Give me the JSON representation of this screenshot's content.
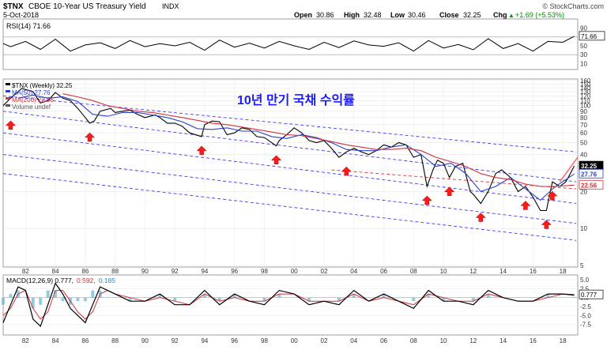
{
  "header": {
    "symbol": "$TNX",
    "name": "CBOE 10-Year US Treasury Yield",
    "exchange": "INDX",
    "date": "5-Oct-2018",
    "copyright": "© StockCharts.com",
    "open_label": "Open",
    "open": "30.86",
    "high_label": "High",
    "high": "32.48",
    "low_label": "Low",
    "low": "30.46",
    "close_label": "Close",
    "close": "32.25",
    "chg_label": "Chg",
    "chg": "+1.69 (+5.53%)",
    "chg_arrow": "▲"
  },
  "chart_data": [
    {
      "type": "line",
      "panel": "rsi",
      "legend": "RSI(14) 71.66",
      "ylim": [
        0,
        100
      ],
      "yticks": [
        10,
        30,
        50,
        70,
        90
      ],
      "reference_lines": [
        30,
        70
      ],
      "last_value_label": "71.66",
      "series": [
        {
          "name": "RSI(14)",
          "x": [
            1980.5,
            1981,
            1982,
            1983,
            1984,
            1985,
            1986,
            1987,
            1988,
            1989,
            1990,
            1991,
            1992,
            1993,
            1994,
            1995,
            1996,
            1997,
            1998,
            1999,
            2000,
            2001,
            2002,
            2003,
            2004,
            2005,
            2006,
            2007,
            2008,
            2009,
            2010,
            2011,
            2012,
            2013,
            2014,
            2015,
            2016,
            2017,
            2018,
            2018.76
          ],
          "y": [
            55,
            48,
            60,
            42,
            65,
            38,
            52,
            57,
            44,
            62,
            48,
            55,
            50,
            58,
            40,
            63,
            47,
            56,
            45,
            60,
            50,
            42,
            58,
            46,
            61,
            52,
            49,
            57,
            38,
            62,
            45,
            53,
            41,
            66,
            44,
            55,
            38,
            60,
            58,
            71.66
          ]
        }
      ]
    },
    {
      "type": "line",
      "panel": "price",
      "title": "10년 만기 국채 수익률",
      "legend": [
        "$TNX (Weekly) 32.25",
        "MA(50) 27.76",
        "MA(200) 22.56",
        "Volume undef"
      ],
      "ylim": [
        5,
        160
      ],
      "log_scale": true,
      "yticks": [
        5,
        10,
        20,
        30,
        40,
        50,
        60,
        70,
        80,
        90,
        100,
        110,
        120,
        130,
        140,
        150,
        160
      ],
      "xticks": [
        "82",
        "84",
        "86",
        "88",
        "90",
        "92",
        "94",
        "96",
        "98",
        "00",
        "02",
        "04",
        "06",
        "08",
        "10",
        "12",
        "14",
        "16",
        "18"
      ],
      "xtick_years": [
        1982,
        1984,
        1986,
        1988,
        1990,
        1992,
        1994,
        1996,
        1998,
        2000,
        2002,
        2004,
        2006,
        2008,
        2010,
        2012,
        2014,
        2016,
        2018
      ],
      "xlim": [
        1980.5,
        2019
      ],
      "last_value_labels": [
        {
          "series": "$TNX",
          "value": 32.25,
          "text": "32.25"
        },
        {
          "series": "MA(50)",
          "value": 27.76,
          "text": "27.76"
        },
        {
          "series": "MA(200)",
          "value": 22.56,
          "text": "22.56"
        }
      ],
      "series": [
        {
          "name": "$TNX",
          "x": [
            1980.5,
            1981,
            1981.75,
            1982.5,
            1983,
            1983.5,
            1984,
            1984.5,
            1985,
            1985.5,
            1986,
            1986.3,
            1986.6,
            1987,
            1987.7,
            1988,
            1988.5,
            1989,
            1989.5,
            1990,
            1990.7,
            1991,
            1991.5,
            1992,
            1992.5,
            1993,
            1993.8,
            1994,
            1994.5,
            1995,
            1995.5,
            1996,
            1996.5,
            1997,
            1997.5,
            1998,
            1998.8,
            1999,
            1999.5,
            2000,
            2000.5,
            2001,
            2001.5,
            2002,
            2002.5,
            2003,
            2003.5,
            2004,
            2004.5,
            2005,
            2005.5,
            2006,
            2006.5,
            2007,
            2007.5,
            2008,
            2008.5,
            2008.9,
            2009.3,
            2009.6,
            2010,
            2010.4,
            2010.8,
            2011.3,
            2011.8,
            2012,
            2012.5,
            2013,
            2013.5,
            2013.9,
            2014.5,
            2015,
            2015.5,
            2016,
            2016.5,
            2016.9,
            2017.3,
            2017.8,
            2018.2,
            2018.5,
            2018.76
          ],
          "y": [
            100,
            115,
            138,
            130,
            105,
            110,
            128,
            115,
            110,
            95,
            80,
            72,
            75,
            90,
            95,
            88,
            90,
            92,
            85,
            80,
            84,
            80,
            72,
            72,
            68,
            60,
            56,
            70,
            75,
            74,
            58,
            60,
            66,
            64,
            56,
            55,
            47,
            52,
            58,
            66,
            60,
            52,
            50,
            52,
            45,
            38,
            42,
            45,
            42,
            40,
            43,
            48,
            46,
            50,
            48,
            38,
            40,
            22,
            30,
            36,
            34,
            26,
            32,
            34,
            20,
            19,
            16,
            20,
            28,
            30,
            26,
            20,
            22,
            18,
            14,
            14,
            24,
            22,
            24,
            28,
            32.25
          ]
        },
        {
          "name": "MA(50)",
          "x": [
            1981.5,
            1982.5,
            1983.5,
            1984.5,
            1985.5,
            1986.5,
            1987.5,
            1988.5,
            1989.5,
            1990.5,
            1991.5,
            1992.5,
            1993.5,
            1994.5,
            1995.5,
            1996.5,
            1997.5,
            1998.5,
            1999.5,
            2000.5,
            2001.5,
            2002.5,
            2003.5,
            2004.5,
            2005.5,
            2006.5,
            2007.5,
            2008.5,
            2009.5,
            2010.5,
            2011.5,
            2012.5,
            2013.5,
            2014.5,
            2015.5,
            2016.5,
            2017.5,
            2018.76
          ],
          "y": [
            115,
            122,
            115,
            118,
            108,
            85,
            82,
            88,
            88,
            84,
            80,
            74,
            65,
            64,
            66,
            62,
            62,
            56,
            54,
            58,
            55,
            50,
            44,
            43,
            43,
            46,
            48,
            40,
            32,
            34,
            28,
            20,
            22,
            26,
            21,
            17,
            22,
            27.76
          ]
        },
        {
          "name": "MA(200)",
          "x": [
            1984.5,
            1985.5,
            1986.5,
            1987.5,
            1988.5,
            1989.5,
            1990.5,
            1991.5,
            1992.5,
            1993.5,
            1994.5,
            1995.5,
            1996.5,
            1997.5,
            1998.5,
            1999.5,
            2000.5,
            2001.5,
            2002.5,
            2003.5,
            2004.5,
            2005.5,
            2006.5,
            2007.5,
            2008.5,
            2009.5,
            2010.5,
            2011.5,
            2012.5,
            2013.5,
            2014.5,
            2015.5,
            2016.5,
            2017.5,
            2018.76
          ],
          "y": [
            125,
            118,
            110,
            100,
            95,
            90,
            88,
            84,
            80,
            76,
            72,
            70,
            67,
            64,
            61,
            58,
            57,
            54,
            51,
            48,
            46,
            44,
            44,
            45,
            43,
            38,
            35,
            32,
            28,
            26,
            25,
            23,
            22,
            22,
            22.56
          ]
        }
      ]
    },
    {
      "type": "line",
      "panel": "macd",
      "legend": [
        "MACD(12,26,9) 0.777,",
        "0.592,",
        "0.185"
      ],
      "ylim": [
        -10,
        5
      ],
      "yticks": [
        -7.5,
        -5.0,
        -2.5,
        0.0,
        2.5,
        5.0
      ],
      "ytick_labels": [
        "-7.5",
        "-5.0",
        "-2.5",
        "0.0",
        "2.5",
        "5.0"
      ],
      "last_value_label": "0.777",
      "series": [
        {
          "name": "MACD",
          "x": [
            1980.5,
            1981,
            1981.5,
            1982,
            1982.5,
            1983,
            1983.5,
            1984,
            1984.5,
            1985,
            1985.5,
            1986,
            1986.5,
            1987,
            1987.5,
            1988,
            1989,
            1990,
            1991,
            1992,
            1993,
            1994,
            1995,
            1996,
            1997,
            1998,
            1999,
            2000,
            2001,
            2002,
            2003,
            2004,
            2005,
            2006,
            2007,
            2008,
            2009,
            2010,
            2011,
            2012,
            2013,
            2014,
            2015,
            2016,
            2017,
            2018,
            2018.76
          ],
          "y": [
            -7,
            -2,
            3,
            2,
            -6,
            -8,
            -2,
            4,
            1,
            -3,
            -5,
            -7,
            -2,
            3,
            2,
            1,
            -1,
            -1,
            1,
            -2,
            -2,
            2,
            -2,
            1,
            -1,
            -2,
            2,
            1,
            -2,
            -1,
            -2,
            2,
            -1,
            1,
            -1,
            -3,
            2,
            -1,
            -1,
            -2,
            2,
            0,
            -1,
            -1,
            1,
            1,
            0.777
          ]
        },
        {
          "name": "Signal",
          "x": [
            1980.5,
            1981,
            1981.5,
            1982,
            1982.5,
            1983,
            1983.5,
            1984,
            1984.5,
            1985,
            1985.5,
            1986,
            1986.5,
            1987,
            1987.5,
            1988,
            1989,
            1990,
            1991,
            1992,
            1993,
            1994,
            1995,
            1996,
            1997,
            1998,
            1999,
            2000,
            2001,
            2002,
            2003,
            2004,
            2005,
            2006,
            2007,
            2008,
            2009,
            2010,
            2011,
            2012,
            2013,
            2014,
            2015,
            2016,
            2017,
            2018,
            2018.76
          ],
          "y": [
            -5,
            -3,
            1,
            2,
            -3,
            -6,
            -4,
            2,
            2,
            -1,
            -4,
            -6,
            -4,
            1,
            2,
            1,
            0,
            -1,
            0,
            -1,
            -2,
            1,
            -1,
            0,
            -1,
            -1,
            1,
            1,
            -1,
            -1,
            -1,
            1,
            -1,
            0,
            -1,
            -2,
            1,
            0,
            -1,
            -1,
            1,
            0,
            -1,
            -1,
            0,
            1,
            0.592
          ]
        }
      ]
    }
  ]
}
